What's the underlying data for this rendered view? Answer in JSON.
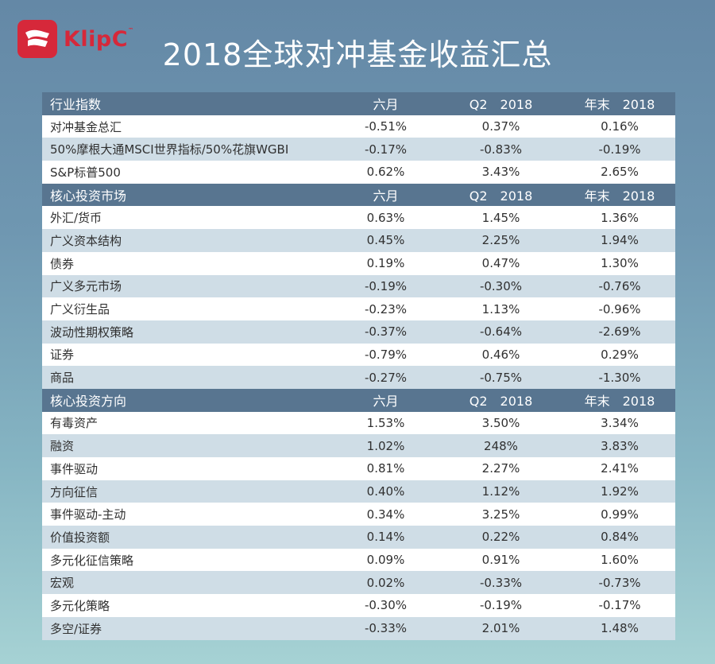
{
  "brand": {
    "name": "KlipC",
    "tm": "™"
  },
  "title": "2018全球对冲基金收益汇总",
  "sections": [
    {
      "header": [
        "行业指数",
        "六月",
        "Q2　2018",
        "年末　2018"
      ],
      "rows": [
        [
          "对冲基金总汇",
          "-0.51%",
          "0.37%",
          "0.16%"
        ],
        [
          "50%摩根大通MSCI世界指标/50%花旗WGBI",
          "-0.17%",
          "-0.83%",
          "-0.19%"
        ],
        [
          "S&P标普500",
          "0.62%",
          "3.43%",
          "2.65%"
        ]
      ]
    },
    {
      "header": [
        "核心投资市场",
        "六月",
        "Q2　2018",
        "年末　2018"
      ],
      "rows": [
        [
          "外汇/货币",
          "0.63%",
          "1.45%",
          "1.36%"
        ],
        [
          "广义资本结构",
          "0.45%",
          "2.25%",
          "1.94%"
        ],
        [
          "债券",
          "0.19%",
          "0.47%",
          "1.30%"
        ],
        [
          "广义多元市场",
          "-0.19%",
          "-0.30%",
          "-0.76%"
        ],
        [
          "广义衍生品",
          "-0.23%",
          "1.13%",
          "-0.96%"
        ],
        [
          "波动性期权策略",
          "-0.37%",
          "-0.64%",
          "-2.69%"
        ],
        [
          "证券",
          "-0.79%",
          "0.46%",
          "0.29%"
        ],
        [
          "商品",
          "-0.27%",
          "-0.75%",
          "-1.30%"
        ]
      ]
    },
    {
      "header": [
        "核心投资方向",
        "六月",
        "Q2　2018",
        "年末　2018"
      ],
      "rows": [
        [
          "有毒资产",
          "1.53%",
          "3.50%",
          "3.34%"
        ],
        [
          "融资",
          "1.02%",
          "248%",
          "3.83%"
        ],
        [
          "事件驱动",
          "0.81%",
          "2.27%",
          "2.41%"
        ],
        [
          "方向征信",
          "0.40%",
          "1.12%",
          "1.92%"
        ],
        [
          "事件驱动-主动",
          "0.34%",
          "3.25%",
          "0.99%"
        ],
        [
          "价值投资额",
          "0.14%",
          "0.22%",
          "0.84%"
        ],
        [
          "多元化征信策略",
          "0.09%",
          "0.91%",
          "1.60%"
        ],
        [
          "宏观",
          "0.02%",
          "-0.33%",
          "-0.73%"
        ],
        [
          "多元化策略",
          "-0.30%",
          "-0.19%",
          "-0.17%"
        ],
        [
          "多空/证券",
          "-0.33%",
          "2.01%",
          "1.48%"
        ]
      ]
    }
  ]
}
